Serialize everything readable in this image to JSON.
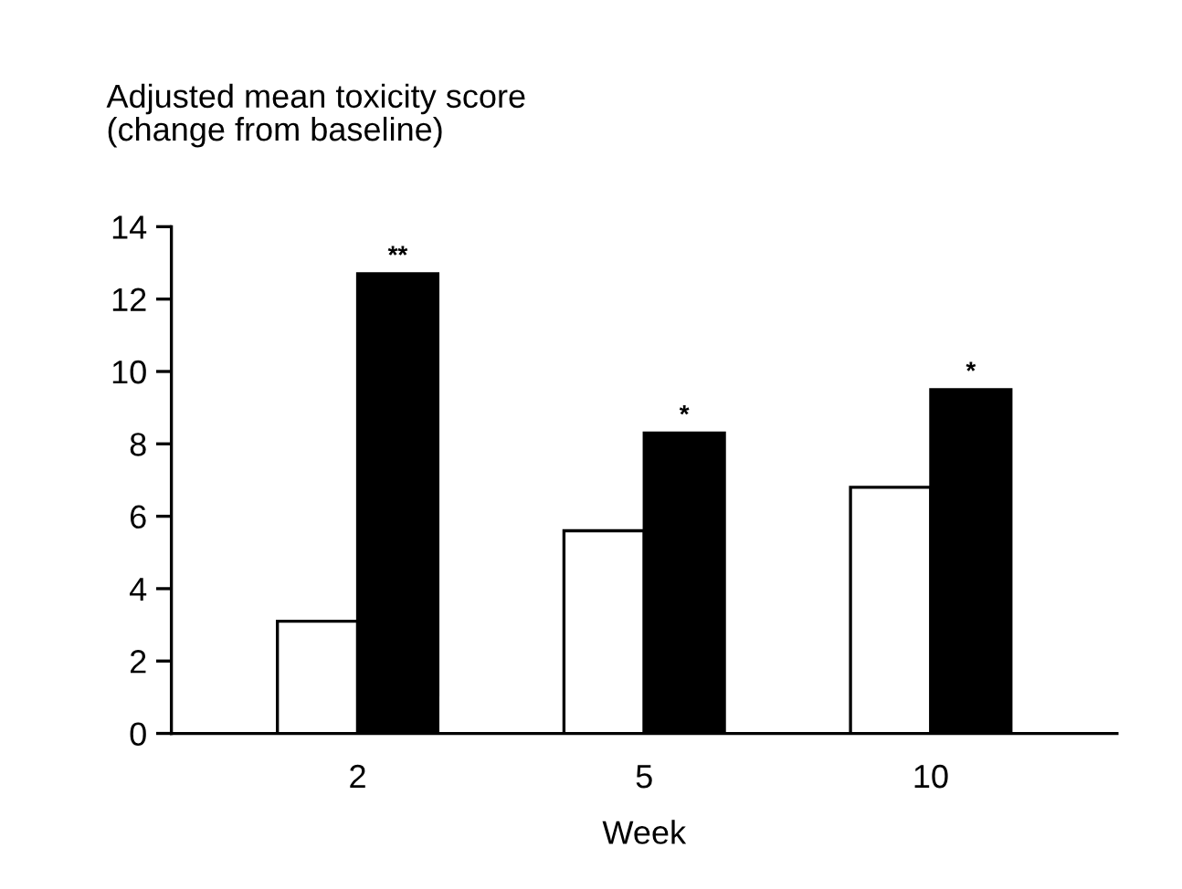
{
  "chart_data": {
    "type": "bar",
    "ylabel": "Adjusted mean toxicity score\n(change from baseline)",
    "xlabel": "Week",
    "categories": [
      "2",
      "5",
      "10"
    ],
    "series": [
      {
        "color": "#ffffff",
        "values": [
          3.1,
          5.6,
          6.8
        ]
      },
      {
        "color": "#000000",
        "values": [
          12.7,
          8.3,
          9.5
        ]
      }
    ],
    "ylim": [
      0,
      14
    ],
    "yticks": [
      0,
      2,
      4,
      6,
      8,
      10,
      12,
      14
    ],
    "grid": false,
    "legend": false,
    "annotations": [
      {
        "text": "**",
        "x": "2",
        "y": 12.7
      },
      {
        "text": "*",
        "x": "5",
        "y": 8.3
      },
      {
        "text": "*",
        "x": "10",
        "y": 9.5
      }
    ]
  }
}
